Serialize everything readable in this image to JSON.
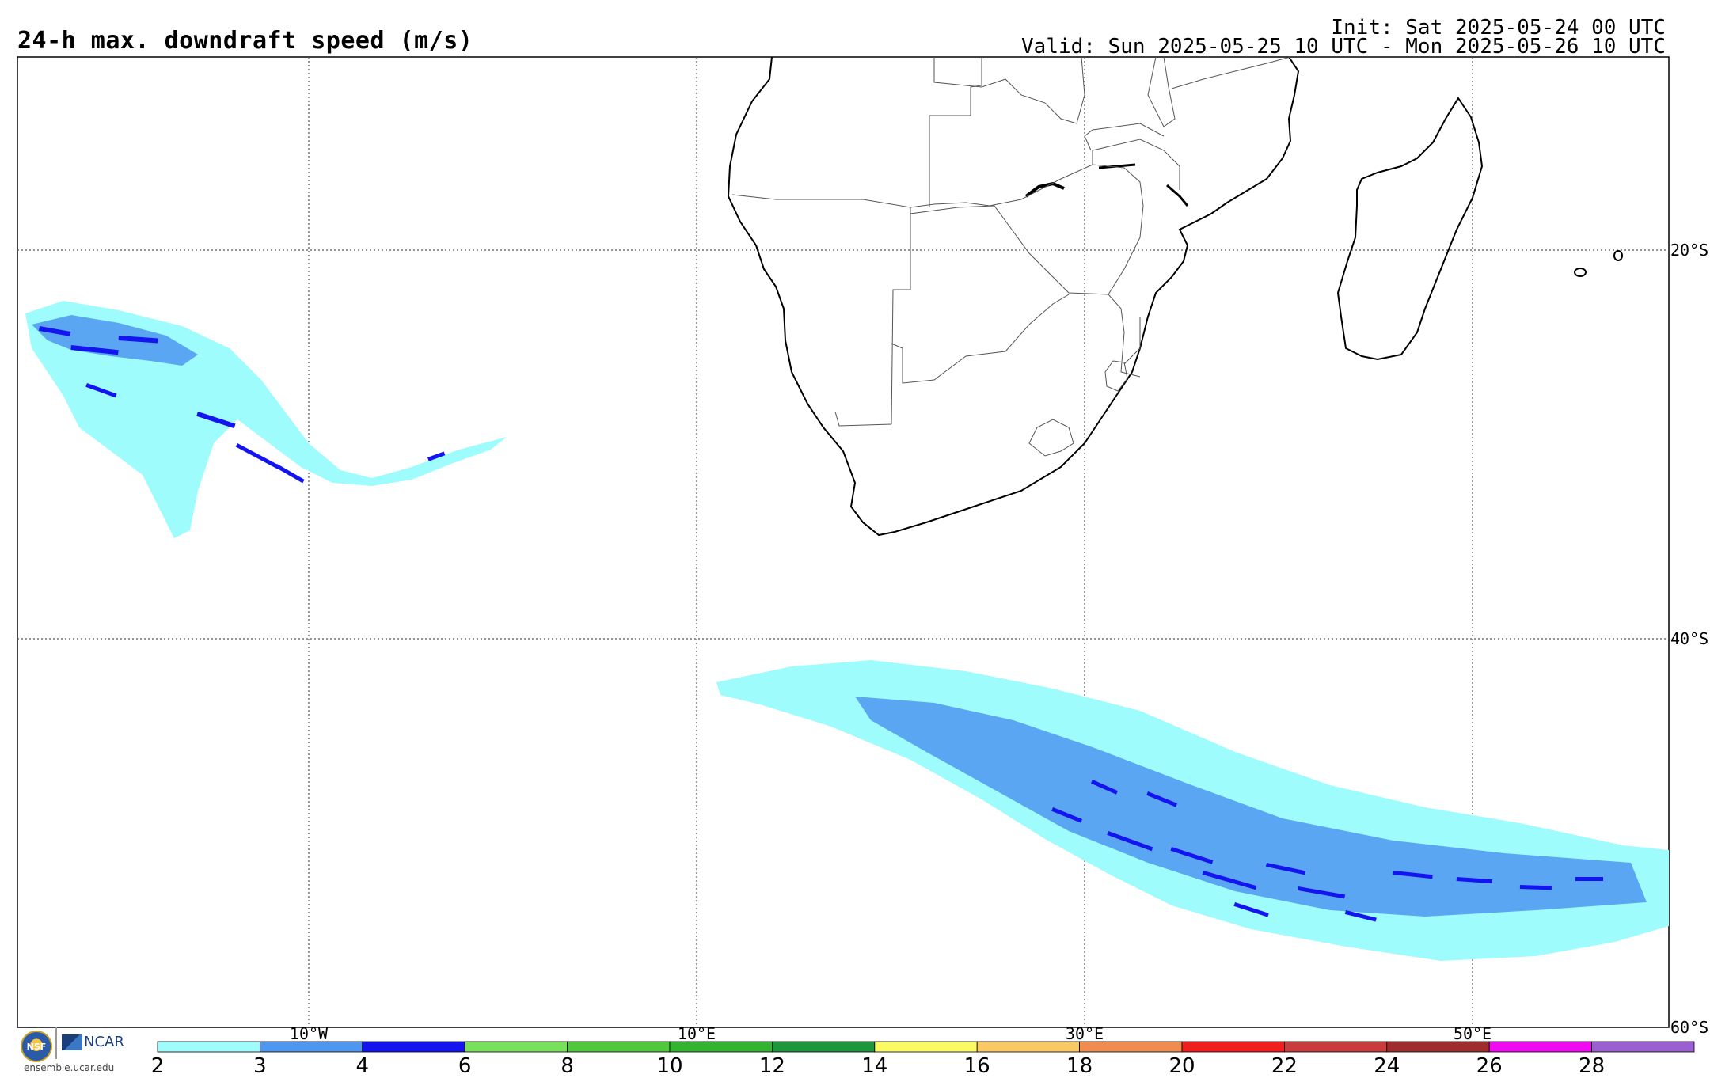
{
  "header": {
    "title": "24-h max. downdraft speed (m/s)",
    "init": "Init: Sat 2025-05-24 00 UTC",
    "valid": "Valid: Sun 2025-05-25 10 UTC - Mon 2025-05-26 10 UTC"
  },
  "grid": {
    "lat_labels": [
      "20°S",
      "40°S",
      "60°S"
    ],
    "lon_labels": [
      "10°W",
      "10°E",
      "30°E",
      "50°E"
    ]
  },
  "colorbar": {
    "ticks": [
      "2",
      "3",
      "4",
      "6",
      "8",
      "10",
      "12",
      "14",
      "16",
      "18",
      "20",
      "22",
      "24",
      "26",
      "28"
    ],
    "colors": [
      "#9ffcfc",
      "#4f96f0",
      "#1414f0",
      "#78e05a",
      "#50c83c",
      "#32b432",
      "#1e963c",
      "#fafa64",
      "#fac864",
      "#f08c50",
      "#f01e1e",
      "#c83c3c",
      "#a02d2d",
      "#f00af0",
      "#9b5fd2"
    ]
  },
  "logos": {
    "nsf": "NSF",
    "ncar": "NCAR",
    "site": "ensemble.ucar.edu"
  },
  "colors": {
    "light_cyan": "#9ffcfc",
    "medium_blue": "#4f96f0",
    "dark_blue": "#1414f0"
  }
}
